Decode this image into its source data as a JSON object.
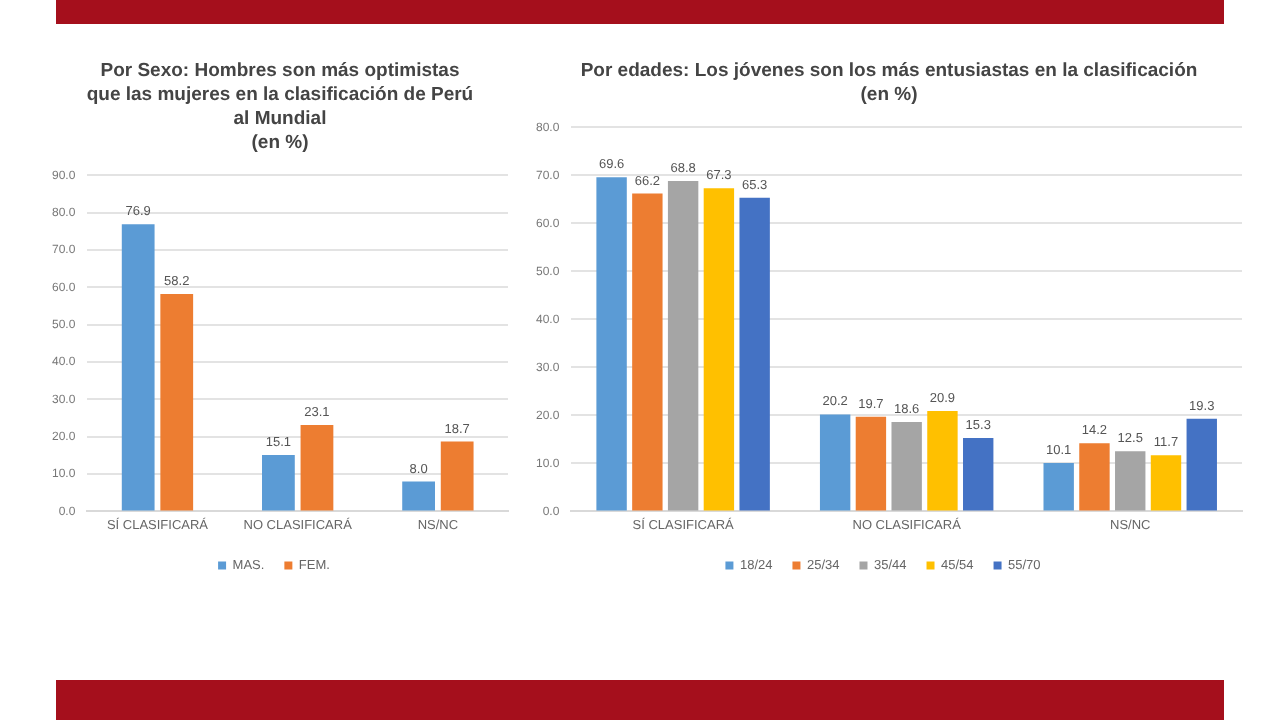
{
  "chart_data": [
    {
      "type": "bar",
      "title": "Por Sexo: Hombres son más optimistas que las mujeres en la clasificación de Perú al Mundial",
      "subtitle": "(en %)",
      "categories": [
        "SÍ CLASIFICARÁ",
        "NO CLASIFICARÁ",
        "NS/NC"
      ],
      "series": [
        {
          "name": "MAS.",
          "color": "#5b9bd5",
          "values": [
            76.9,
            15.1,
            8.0
          ],
          "value_labels": [
            "76.9",
            "15.1",
            "8.0"
          ]
        },
        {
          "name": "FEM.",
          "color": "#ed7d31",
          "values": [
            58.2,
            23.1,
            18.7
          ],
          "value_labels": [
            "58.2",
            "23.1",
            "18.7"
          ]
        }
      ],
      "ylim": [
        0,
        90
      ],
      "yticks": [
        {
          "value": 0,
          "label": "0.0"
        },
        {
          "value": 10,
          "label": "10.0"
        },
        {
          "value": 20,
          "label": "20.0"
        },
        {
          "value": 30,
          "label": "30.0"
        },
        {
          "value": 40,
          "label": "40.0"
        },
        {
          "value": 50,
          "label": "50.0"
        },
        {
          "value": 60,
          "label": "60.0"
        },
        {
          "value": 70,
          "label": "70.0"
        },
        {
          "value": 80,
          "label": "80.0"
        },
        {
          "value": 90,
          "label": "90.0"
        }
      ],
      "grid": "y",
      "legend": "bottom"
    },
    {
      "type": "bar",
      "title": "Por edades: Los jóvenes son los más entusiastas en la clasificación",
      "subtitle": "(en %)",
      "categories": [
        "SÍ CLASIFICARÁ",
        "NO CLASIFICARÁ",
        "NS/NC"
      ],
      "series": [
        {
          "name": "18/24",
          "color": "#5b9bd5",
          "values": [
            69.6,
            20.2,
            10.1
          ],
          "value_labels": [
            "69.6",
            "20.2",
            "10.1"
          ]
        },
        {
          "name": "25/34",
          "color": "#ed7d31",
          "values": [
            66.2,
            19.7,
            14.2
          ],
          "value_labels": [
            "66.2",
            "19.7",
            "14.2"
          ]
        },
        {
          "name": "35/44",
          "color": "#a5a5a5",
          "values": [
            68.8,
            18.6,
            12.5
          ],
          "value_labels": [
            "68.8",
            "18.6",
            "12.5"
          ]
        },
        {
          "name": "45/54",
          "color": "#ffc000",
          "values": [
            67.3,
            20.9,
            11.7
          ],
          "value_labels": [
            "67.3",
            "20.9",
            "11.7"
          ]
        },
        {
          "name": "55/70",
          "color": "#4472c4",
          "values": [
            65.3,
            15.3,
            19.3
          ],
          "value_labels": [
            "65.3",
            "15.3",
            "19.3"
          ]
        }
      ],
      "ylim": [
        0,
        80
      ],
      "yticks": [
        {
          "value": 0,
          "label": "0.0"
        },
        {
          "value": 10,
          "label": "10.0"
        },
        {
          "value": 20,
          "label": "20.0"
        },
        {
          "value": 30,
          "label": "30.0"
        },
        {
          "value": 40,
          "label": "40.0"
        },
        {
          "value": 50,
          "label": "50.0"
        },
        {
          "value": 60,
          "label": "60.0"
        },
        {
          "value": 70,
          "label": "70.0"
        },
        {
          "value": 80,
          "label": "80.0"
        }
      ],
      "grid": "y",
      "legend": "bottom"
    }
  ]
}
